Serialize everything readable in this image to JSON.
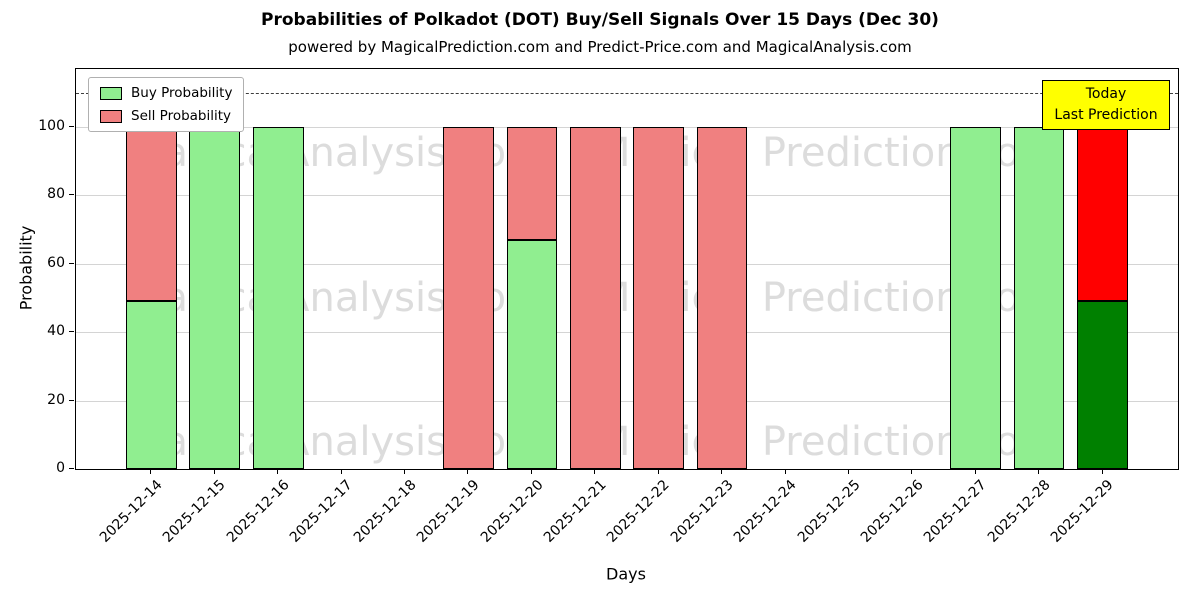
{
  "chart_data": {
    "type": "bar",
    "stacked": true,
    "title": "Probabilities of Polkadot (DOT) Buy/Sell Signals Over 15 Days (Dec 30)",
    "subtitle": "powered by MagicalPrediction.com and Predict-Price.com and MagicalAnalysis.com",
    "xlabel": "Days",
    "ylabel": "Probability",
    "categories": [
      "2025-12-14",
      "2025-12-15",
      "2025-12-16",
      "2025-12-17",
      "2025-12-18",
      "2025-12-19",
      "2025-12-20",
      "2025-12-21",
      "2025-12-22",
      "2025-12-23",
      "2025-12-24",
      "2025-12-25",
      "2025-12-26",
      "2025-12-27",
      "2025-12-28",
      "2025-12-29"
    ],
    "series": [
      {
        "name": "Buy Probability",
        "values": [
          49,
          100,
          100,
          0,
          0,
          0,
          67,
          0,
          0,
          0,
          0,
          0,
          0,
          100,
          100,
          49
        ],
        "color": "#90ee90",
        "today_color": "#008000"
      },
      {
        "name": "Sell Probability",
        "values": [
          51,
          0,
          0,
          0,
          0,
          100,
          33,
          100,
          100,
          100,
          0,
          0,
          0,
          0,
          0,
          51
        ],
        "color": "#f08080",
        "today_color": "#ff0000"
      }
    ],
    "today_index": 15,
    "yticks": [
      0,
      20,
      40,
      60,
      80,
      100
    ],
    "ylim": [
      0,
      117
    ],
    "dashed_line_y": 110,
    "grid": true,
    "legend_position": "upper left"
  },
  "annotation": {
    "line1": "Today",
    "line2": "Last Prediction",
    "bg": "#ffff00"
  },
  "watermarks": {
    "texts": [
      "MagicalAnalysis.com",
      "Magical Prediction.com"
    ],
    "color": "rgba(128,128,128,0.28)"
  }
}
